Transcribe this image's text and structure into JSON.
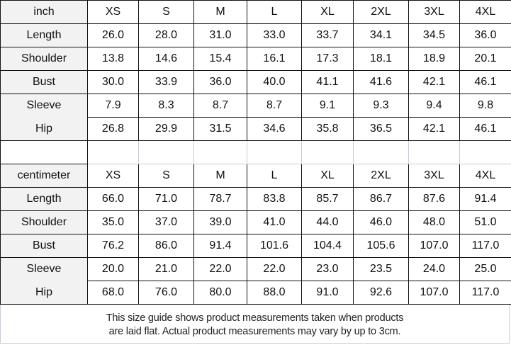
{
  "sizes": [
    "XS",
    "S",
    "M",
    "L",
    "XL",
    "2XL",
    "3XL",
    "4XL"
  ],
  "inch": {
    "unit_label": "inch",
    "rows": [
      {
        "label": "Length",
        "values": [
          "26.0",
          "28.0",
          "31.0",
          "33.0",
          "33.7",
          "34.1",
          "34.5",
          "36.0"
        ]
      },
      {
        "label": "Shoulder",
        "values": [
          "13.8",
          "14.6",
          "15.4",
          "16.1",
          "17.3",
          "18.1",
          "18.9",
          "20.1"
        ]
      },
      {
        "label": "Bust",
        "values": [
          "30.0",
          "33.9",
          "36.0",
          "40.0",
          "41.1",
          "41.6",
          "42.1",
          "46.1"
        ]
      },
      {
        "label": "Sleeve",
        "values": [
          "7.9",
          "8.3",
          "8.7",
          "8.7",
          "9.1",
          "9.3",
          "9.4",
          "9.8"
        ]
      },
      {
        "label": "Hip",
        "values": [
          "26.8",
          "29.9",
          "31.5",
          "34.6",
          "35.8",
          "36.5",
          "42.1",
          "46.1"
        ]
      }
    ]
  },
  "centimeter": {
    "unit_label": "centimeter",
    "rows": [
      {
        "label": "Length",
        "values": [
          "66.0",
          "71.0",
          "78.7",
          "83.8",
          "85.7",
          "86.7",
          "87.6",
          "91.4"
        ]
      },
      {
        "label": "Shoulder",
        "values": [
          "35.0",
          "37.0",
          "39.0",
          "41.0",
          "44.0",
          "46.0",
          "48.0",
          "51.0"
        ]
      },
      {
        "label": "Bust",
        "values": [
          "76.2",
          "86.0",
          "91.4",
          "101.6",
          "104.4",
          "105.6",
          "107.0",
          "117.0"
        ]
      },
      {
        "label": "Sleeve",
        "values": [
          "20.0",
          "21.0",
          "22.0",
          "22.0",
          "23.0",
          "23.5",
          "24.0",
          "25.0"
        ]
      },
      {
        "label": "Hip",
        "values": [
          "68.0",
          "76.0",
          "80.0",
          "88.0",
          "91.0",
          "92.6",
          "107.0",
          "117.0"
        ]
      }
    ]
  },
  "note": {
    "line1": "This size guide shows product measurements taken when products",
    "line2": "are laid flat. Actual product measurements may vary by up to 3cm."
  }
}
